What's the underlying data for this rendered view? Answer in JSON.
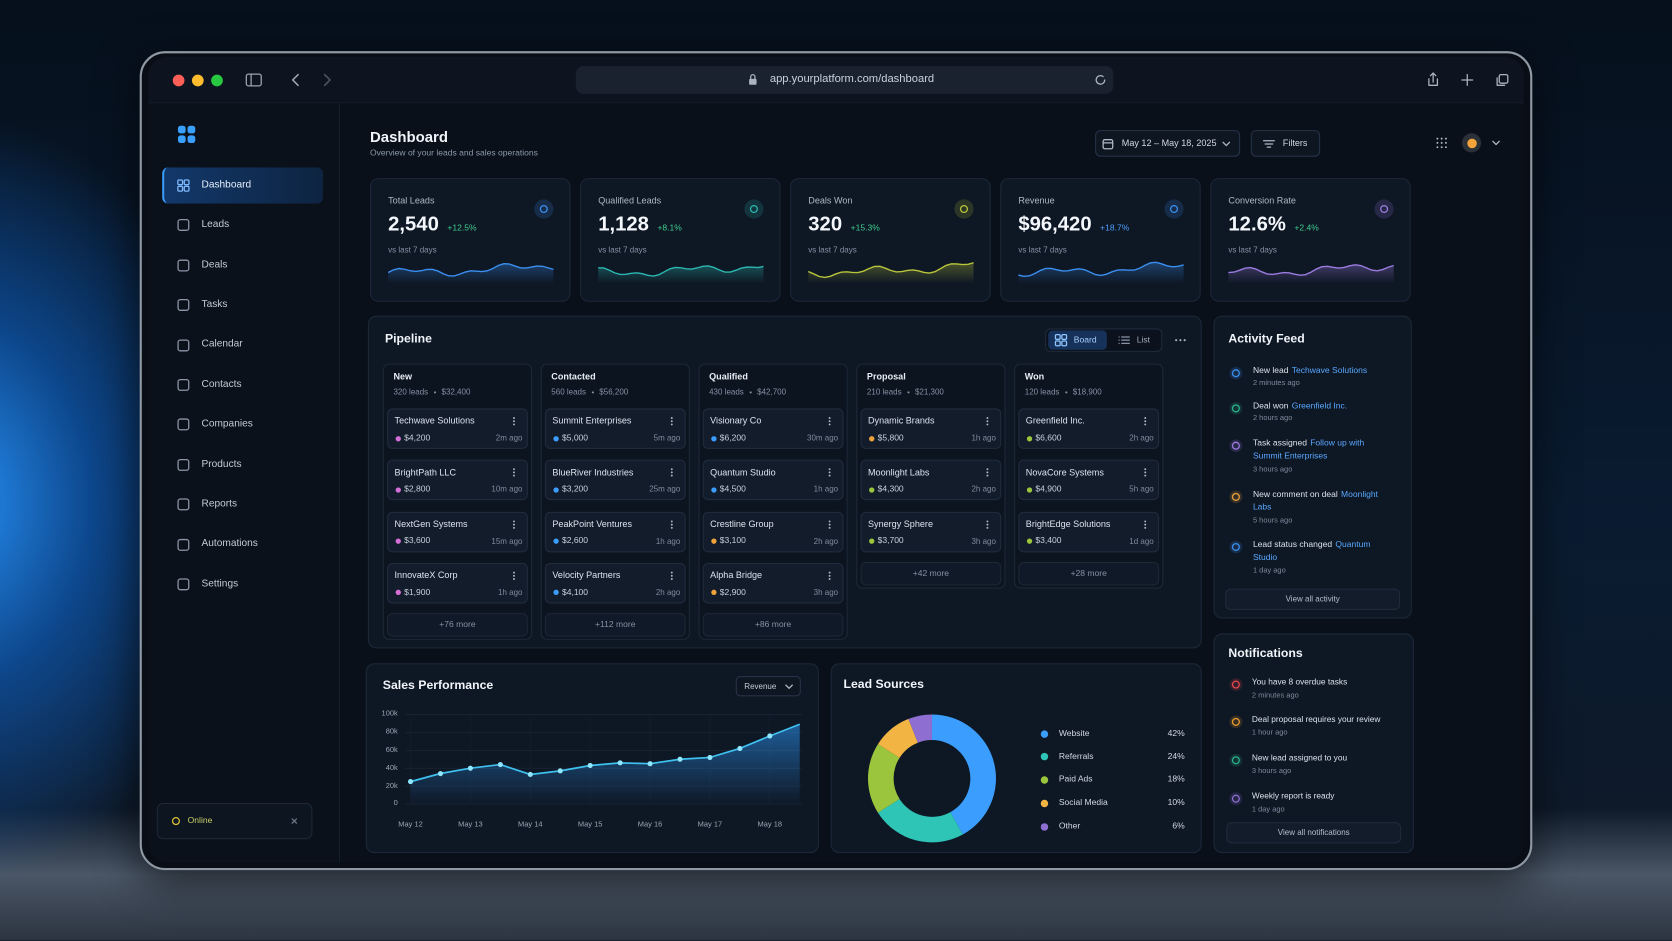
{
  "browser": {
    "url": "app.yourplatform.com/dashboard"
  },
  "sidebar": {
    "nav": [
      "Dashboard",
      "Leads",
      "Deals",
      "Tasks",
      "Calendar",
      "Contacts",
      "Companies",
      "Products",
      "Reports",
      "Automations",
      "Settings"
    ],
    "status": "Online"
  },
  "header": {
    "title": "Dashboard",
    "subtitle": "Overview of your leads and sales operations",
    "date_range": "May 12 – May 18, 2025",
    "filters": "Filters"
  },
  "kpis": [
    {
      "label": "Total Leads",
      "value": "2,540",
      "change": "+12.5%",
      "period": "vs last 7 days",
      "color": "#3b8ff0"
    },
    {
      "label": "Qualified Leads",
      "value": "1,128",
      "change": "+8.1%",
      "period": "vs last 7 days",
      "color": "#2bb8b0"
    },
    {
      "label": "Deals Won",
      "value": "320",
      "change": "+15.3%",
      "period": "vs last 7 days",
      "color": "#b8c53a"
    },
    {
      "label": "Revenue",
      "value": "$96,420",
      "change": "+18.7%",
      "period": "vs last 7 days",
      "color": "#3b8ff0"
    },
    {
      "label": "Conversion Rate",
      "value": "12.6%",
      "change": "+2.4%",
      "period": "vs last 7 days",
      "color": "#9b7be0"
    }
  ],
  "pipeline": {
    "title": "Pipeline",
    "views": [
      "Board",
      "List"
    ],
    "columns": [
      {
        "name": "New",
        "leads": "320 leads",
        "amount": "$32,400",
        "more": "+76 more",
        "cards": [
          {
            "name": "Techwave Solutions",
            "amount": "$4,200",
            "time": "2m ago",
            "dot": "#d46fd8"
          },
          {
            "name": "BrightPath LLC",
            "amount": "$2,800",
            "time": "10m ago",
            "dot": "#d46fd8"
          },
          {
            "name": "NextGen Systems",
            "amount": "$3,600",
            "time": "15m ago",
            "dot": "#d46fd8"
          },
          {
            "name": "InnovateX Corp",
            "amount": "$1,900",
            "time": "1h ago",
            "dot": "#d46fd8"
          }
        ]
      },
      {
        "name": "Contacted",
        "leads": "560 leads",
        "amount": "$56,200",
        "more": "+112 more",
        "cards": [
          {
            "name": "Summit Enterprises",
            "amount": "$5,000",
            "time": "5m ago",
            "dot": "#3b9eff"
          },
          {
            "name": "BlueRiver Industries",
            "amount": "$3,200",
            "time": "25m ago",
            "dot": "#3b9eff"
          },
          {
            "name": "PeakPoint Ventures",
            "amount": "$2,600",
            "time": "1h ago",
            "dot": "#3b9eff"
          },
          {
            "name": "Velocity Partners",
            "amount": "$4,100",
            "time": "2h ago",
            "dot": "#3b9eff"
          }
        ]
      },
      {
        "name": "Qualified",
        "leads": "430 leads",
        "amount": "$42,700",
        "more": "+86 more",
        "cards": [
          {
            "name": "Visionary Co",
            "amount": "$6,200",
            "time": "30m ago",
            "dot": "#3b9eff"
          },
          {
            "name": "Quantum Studio",
            "amount": "$4,500",
            "time": "1h ago",
            "dot": "#3b9eff"
          },
          {
            "name": "Crestline Group",
            "amount": "$3,100",
            "time": "2h ago",
            "dot": "#f0a23a"
          },
          {
            "name": "Alpha Bridge",
            "amount": "$2,900",
            "time": "3h ago",
            "dot": "#f0a23a"
          }
        ]
      },
      {
        "name": "Proposal",
        "leads": "210 leads",
        "amount": "$21,300",
        "more": "+42 more",
        "cards": [
          {
            "name": "Dynamic Brands",
            "amount": "$5,800",
            "time": "1h ago",
            "dot": "#f0a23a"
          },
          {
            "name": "Moonlight Labs",
            "amount": "$4,300",
            "time": "2h ago",
            "dot": "#9bc53d"
          },
          {
            "name": "Synergy Sphere",
            "amount": "$3,700",
            "time": "3h ago",
            "dot": "#9bc53d"
          }
        ]
      },
      {
        "name": "Won",
        "leads": "120 leads",
        "amount": "$18,900",
        "more": "+28 more",
        "cards": [
          {
            "name": "Greenfield Inc.",
            "amount": "$6,600",
            "time": "2h ago",
            "dot": "#9bc53d"
          },
          {
            "name": "NovaCore Systems",
            "amount": "$4,900",
            "time": "5h ago",
            "dot": "#9bc53d"
          },
          {
            "name": "BrightEdge Solutions",
            "amount": "$3,400",
            "time": "1d ago",
            "dot": "#9bc53d"
          }
        ]
      }
    ]
  },
  "activity": {
    "title": "Activity Feed",
    "items": [
      {
        "text": "New lead",
        "link": "Techwave Solutions",
        "time": "2 minutes ago",
        "color": "#3b8ff0"
      },
      {
        "text": "Deal won",
        "link": "Greenfield Inc.",
        "time": "2 hours ago",
        "color": "#2bb38a"
      },
      {
        "text": "Task assigned",
        "link": "Follow up with Summit Enterprises",
        "time": "3 hours ago",
        "color": "#9b7be0"
      },
      {
        "text": "New comment on deal",
        "link": "Moonlight Labs",
        "time": "5 hours ago",
        "color": "#e8a13a"
      },
      {
        "text": "Lead status changed",
        "link": "Quantum Studio",
        "time": "1 day ago",
        "color": "#3b8ff0"
      }
    ],
    "button": "View all activity"
  },
  "notifications": {
    "title": "Notifications",
    "items": [
      {
        "text": "You have 8 overdue tasks",
        "time": "2 minutes ago",
        "color": "#e5484d"
      },
      {
        "text": "Deal proposal requires your review",
        "time": "1 hour ago",
        "color": "#e89a2c"
      },
      {
        "text": "New lead assigned to you",
        "time": "3 hours ago",
        "color": "#2bb38a"
      },
      {
        "text": "Weekly report is ready",
        "time": "1 day ago",
        "color": "#8e6fd1"
      }
    ],
    "button": "View all notifications"
  },
  "chart_data": [
    {
      "type": "line",
      "title": "Sales Performance",
      "control": "Revenue",
      "categories": [
        "May 12",
        null,
        "May 13",
        null,
        "May 14",
        null,
        "May 15",
        null,
        "May 16",
        null,
        "May 17",
        null,
        "May 18",
        null
      ],
      "values": [
        25000,
        34000,
        40000,
        44000,
        33000,
        37000,
        43000,
        46000,
        45000,
        50000,
        52000,
        62000,
        76000,
        89000
      ],
      "color": "#3fc1f0",
      "ylim": [
        0,
        100000
      ],
      "yticks": [
        0,
        {
          "value": 20000,
          "label": "20k"
        },
        {
          "value": 40000,
          "label": "40k"
        },
        {
          "value": 60000,
          "label": "60k"
        },
        {
          "value": 80000,
          "label": "80k"
        },
        {
          "value": 100000,
          "label": "100k"
        }
      ],
      "grid": true
    },
    {
      "type": "pie",
      "title": "Lead Sources",
      "donut": true,
      "categories": [
        "Website",
        "Referrals",
        "Paid Ads",
        "Social Media",
        "Other"
      ],
      "values": [
        42,
        24,
        18,
        10,
        6
      ],
      "value_labels": [
        "42%",
        "24%",
        "18%",
        "10%",
        "6%"
      ],
      "colors": [
        "#3b9eff",
        "#2ec4b6",
        "#9bc53d",
        "#f2b544",
        "#8e6fd1"
      ]
    }
  ]
}
